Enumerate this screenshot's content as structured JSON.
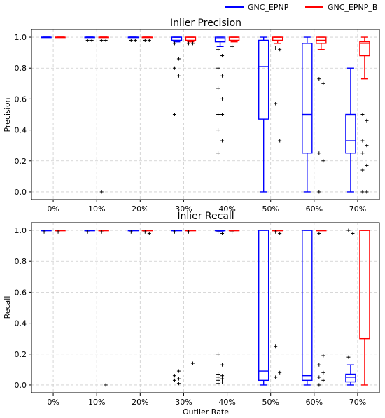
{
  "legend": {
    "placement": "top-right",
    "items": [
      {
        "label": "GNC_EPNP",
        "color": "#0000ff"
      },
      {
        "label": "GNC_EPNP_B",
        "color": "#ff0000"
      }
    ]
  },
  "chart_data": [
    {
      "type": "box",
      "title": "Inlier Precision",
      "xlabel": "",
      "ylabel": "Precision",
      "ylim": [
        -0.05,
        1.05
      ],
      "yticks": [
        "0.0",
        "0.2",
        "0.4",
        "0.6",
        "0.8",
        "1.0"
      ],
      "grid": true,
      "categories": [
        "0%",
        "10%",
        "20%",
        "30%",
        "40%",
        "50%",
        "60%",
        "70%"
      ],
      "series": [
        {
          "name": "GNC_EPNP",
          "color": "#0000ff",
          "boxes": [
            {
              "min": 1.0,
              "q1": 1.0,
              "median": 1.0,
              "q3": 1.0,
              "max": 1.0,
              "outliers": []
            },
            {
              "min": 1.0,
              "q1": 1.0,
              "median": 1.0,
              "q3": 1.0,
              "max": 1.0,
              "outliers": [
                0.98,
                0.98
              ]
            },
            {
              "min": 1.0,
              "q1": 1.0,
              "median": 1.0,
              "q3": 1.0,
              "max": 1.0,
              "outliers": [
                0.98,
                0.98
              ]
            },
            {
              "min": 0.97,
              "q1": 0.98,
              "median": 1.0,
              "q3": 1.0,
              "max": 1.0,
              "outliers": [
                0.96,
                0.86,
                0.8,
                0.75,
                0.5
              ]
            },
            {
              "min": 0.94,
              "q1": 0.97,
              "median": 0.99,
              "q3": 1.0,
              "max": 1.0,
              "outliers": [
                0.92,
                0.88,
                0.8,
                0.75,
                0.67,
                0.6,
                0.5,
                0.5,
                0.4,
                0.33,
                0.25
              ]
            },
            {
              "min": 0.0,
              "q1": 0.47,
              "median": 0.81,
              "q3": 0.98,
              "max": 1.0,
              "outliers": []
            },
            {
              "min": 0.0,
              "q1": 0.25,
              "median": 0.5,
              "q3": 0.96,
              "max": 1.0,
              "outliers": []
            },
            {
              "min": 0.0,
              "q1": 0.25,
              "median": 0.33,
              "q3": 0.5,
              "max": 0.8,
              "outliers": []
            }
          ]
        },
        {
          "name": "GNC_EPNP_B",
          "color": "#ff0000",
          "boxes": [
            {
              "min": 1.0,
              "q1": 1.0,
              "median": 1.0,
              "q3": 1.0,
              "max": 1.0,
              "outliers": []
            },
            {
              "min": 1.0,
              "q1": 1.0,
              "median": 1.0,
              "q3": 1.0,
              "max": 1.0,
              "outliers": [
                0.98,
                0.98,
                0.0
              ]
            },
            {
              "min": 1.0,
              "q1": 1.0,
              "median": 1.0,
              "q3": 1.0,
              "max": 1.0,
              "outliers": [
                0.98,
                0.98
              ]
            },
            {
              "min": 0.97,
              "q1": 0.98,
              "median": 1.0,
              "q3": 1.0,
              "max": 1.0,
              "outliers": [
                0.96,
                0.96
              ]
            },
            {
              "min": 0.97,
              "q1": 0.98,
              "median": 1.0,
              "q3": 1.0,
              "max": 1.0,
              "outliers": [
                0.94
              ]
            },
            {
              "min": 0.96,
              "q1": 0.98,
              "median": 1.0,
              "q3": 1.0,
              "max": 1.0,
              "outliers": [
                0.93,
                0.92,
                0.57,
                0.33
              ]
            },
            {
              "min": 0.92,
              "q1": 0.96,
              "median": 0.98,
              "q3": 1.0,
              "max": 1.0,
              "outliers": [
                0.73,
                0.7,
                0.25,
                0.2,
                0.0
              ]
            },
            {
              "min": 0.73,
              "q1": 0.88,
              "median": 0.96,
              "q3": 0.97,
              "max": 1.0,
              "outliers": [
                0.5,
                0.46,
                0.33,
                0.3,
                0.25,
                0.17,
                0.14,
                0.0,
                0.0
              ]
            }
          ]
        }
      ]
    },
    {
      "type": "box",
      "title": "Inlier Recall",
      "xlabel": "Outlier Rate",
      "ylabel": "Recall",
      "ylim": [
        -0.05,
        1.05
      ],
      "yticks": [
        "0.0",
        "0.2",
        "0.4",
        "0.6",
        "0.8",
        "1.0"
      ],
      "grid": true,
      "categories": [
        "0%",
        "10%",
        "20%",
        "30%",
        "40%",
        "50%",
        "60%",
        "70%"
      ],
      "series": [
        {
          "name": "GNC_EPNP",
          "color": "#0000ff",
          "boxes": [
            {
              "min": 1.0,
              "q1": 1.0,
              "median": 1.0,
              "q3": 1.0,
              "max": 1.0,
              "outliers": [
                0.99
              ]
            },
            {
              "min": 1.0,
              "q1": 1.0,
              "median": 1.0,
              "q3": 1.0,
              "max": 1.0,
              "outliers": [
                0.99
              ]
            },
            {
              "min": 1.0,
              "q1": 1.0,
              "median": 1.0,
              "q3": 1.0,
              "max": 1.0,
              "outliers": [
                0.99
              ]
            },
            {
              "min": 1.0,
              "q1": 1.0,
              "median": 1.0,
              "q3": 1.0,
              "max": 1.0,
              "outliers": [
                0.99,
                0.09,
                0.06,
                0.04,
                0.03,
                0.01
              ]
            },
            {
              "min": 0.99,
              "q1": 1.0,
              "median": 1.0,
              "q3": 1.0,
              "max": 1.0,
              "outliers": [
                0.99,
                0.98,
                0.2,
                0.13,
                0.07,
                0.06,
                0.05,
                0.04,
                0.03,
                0.02,
                0.01
              ]
            },
            {
              "min": 0.0,
              "q1": 0.03,
              "median": 0.09,
              "q3": 1.0,
              "max": 1.0,
              "outliers": []
            },
            {
              "min": 0.0,
              "q1": 0.03,
              "median": 0.06,
              "q3": 1.0,
              "max": 1.0,
              "outliers": []
            },
            {
              "min": 0.0,
              "q1": 0.02,
              "median": 0.05,
              "q3": 0.07,
              "max": 0.13,
              "outliers": [
                1.0,
                0.98,
                0.18
              ]
            }
          ]
        },
        {
          "name": "GNC_EPNP_B",
          "color": "#ff0000",
          "boxes": [
            {
              "min": 1.0,
              "q1": 1.0,
              "median": 1.0,
              "q3": 1.0,
              "max": 1.0,
              "outliers": [
                0.99
              ]
            },
            {
              "min": 1.0,
              "q1": 1.0,
              "median": 1.0,
              "q3": 1.0,
              "max": 1.0,
              "outliers": [
                0.99,
                0.0
              ]
            },
            {
              "min": 1.0,
              "q1": 1.0,
              "median": 1.0,
              "q3": 1.0,
              "max": 1.0,
              "outliers": [
                0.99,
                0.98
              ]
            },
            {
              "min": 1.0,
              "q1": 1.0,
              "median": 1.0,
              "q3": 1.0,
              "max": 1.0,
              "outliers": [
                0.99,
                0.14
              ]
            },
            {
              "min": 1.0,
              "q1": 1.0,
              "median": 1.0,
              "q3": 1.0,
              "max": 1.0,
              "outliers": [
                0.99
              ]
            },
            {
              "min": 1.0,
              "q1": 1.0,
              "median": 1.0,
              "q3": 1.0,
              "max": 1.0,
              "outliers": [
                0.99,
                0.98,
                0.25,
                0.08,
                0.05
              ]
            },
            {
              "min": 1.0,
              "q1": 1.0,
              "median": 1.0,
              "q3": 1.0,
              "max": 1.0,
              "outliers": [
                0.98,
                0.19,
                0.13,
                0.08,
                0.05,
                0.03,
                0.0
              ]
            },
            {
              "min": 0.0,
              "q1": 0.3,
              "median": 1.0,
              "q3": 1.0,
              "max": 1.0,
              "outliers": []
            }
          ]
        }
      ]
    }
  ]
}
